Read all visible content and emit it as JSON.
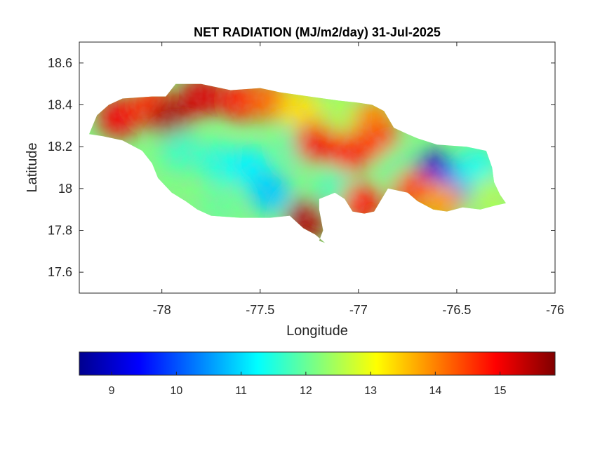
{
  "chart_data": {
    "type": "heatmap",
    "title": "NET RADIATION (MJ/m2/day) 31-Jul-2025",
    "xlabel": "Longitude",
    "ylabel": "Latitude",
    "xlim": [
      -78.42,
      -76.0
    ],
    "ylim": [
      17.5,
      18.7
    ],
    "x_ticks": [
      -78,
      -77.5,
      -77,
      -76.5,
      -76
    ],
    "x_tick_labels": [
      "-78",
      "-77.5",
      "-77",
      "-76.5",
      "-76"
    ],
    "y_ticks": [
      17.6,
      17.8,
      18,
      18.2,
      18.4,
      18.6
    ],
    "y_tick_labels": [
      "17.6",
      "17.8",
      "18",
      "18.2",
      "18.4",
      "18.6"
    ],
    "colormap": "jet",
    "color_range": [
      8.5,
      15.85
    ],
    "colorbar_ticks": [
      9,
      10,
      11,
      12,
      13,
      14,
      15
    ],
    "colorbar_tick_labels": [
      "9",
      "10",
      "11",
      "12",
      "13",
      "14",
      "15"
    ],
    "colorbar_location": "southoutside",
    "grid": false,
    "region_outline": [
      [
        -78.37,
        18.26
      ],
      [
        -78.33,
        18.35
      ],
      [
        -78.27,
        18.4
      ],
      [
        -78.2,
        18.43
      ],
      [
        -78.05,
        18.44
      ],
      [
        -77.98,
        18.44
      ],
      [
        -77.93,
        18.5
      ],
      [
        -77.8,
        18.5
      ],
      [
        -77.65,
        18.47
      ],
      [
        -77.5,
        18.48
      ],
      [
        -77.4,
        18.46
      ],
      [
        -77.25,
        18.44
      ],
      [
        -77.1,
        18.42
      ],
      [
        -77.0,
        18.41
      ],
      [
        -76.93,
        18.4
      ],
      [
        -76.87,
        18.37
      ],
      [
        -76.82,
        18.29
      ],
      [
        -76.75,
        18.26
      ],
      [
        -76.7,
        18.24
      ],
      [
        -76.6,
        18.21
      ],
      [
        -76.45,
        18.2
      ],
      [
        -76.35,
        18.18
      ],
      [
        -76.32,
        18.1
      ],
      [
        -76.31,
        18.03
      ],
      [
        -76.28,
        17.97
      ],
      [
        -76.25,
        17.93
      ],
      [
        -76.3,
        17.92
      ],
      [
        -76.38,
        17.9
      ],
      [
        -76.47,
        17.91
      ],
      [
        -76.55,
        17.89
      ],
      [
        -76.62,
        17.9
      ],
      [
        -76.7,
        17.94
      ],
      [
        -76.75,
        17.98
      ],
      [
        -76.85,
        18.0
      ],
      [
        -76.92,
        17.89
      ],
      [
        -76.97,
        17.88
      ],
      [
        -77.03,
        17.89
      ],
      [
        -77.07,
        17.95
      ],
      [
        -77.12,
        17.98
      ],
      [
        -77.2,
        17.95
      ],
      [
        -77.2,
        17.9
      ],
      [
        -77.18,
        17.8
      ],
      [
        -77.2,
        17.75
      ],
      [
        -77.17,
        17.74
      ],
      [
        -77.22,
        17.78
      ],
      [
        -77.28,
        17.81
      ],
      [
        -77.35,
        17.87
      ],
      [
        -77.45,
        17.86
      ],
      [
        -77.6,
        17.86
      ],
      [
        -77.75,
        17.87
      ],
      [
        -77.82,
        17.9
      ],
      [
        -77.88,
        17.94
      ],
      [
        -77.95,
        17.98
      ],
      [
        -78.02,
        18.05
      ],
      [
        -78.05,
        18.12
      ],
      [
        -78.1,
        18.18
      ],
      [
        -78.2,
        18.23
      ],
      [
        -78.3,
        18.25
      ]
    ],
    "value_field": [
      {
        "lon": -78.22,
        "lat": 18.34,
        "value": 15.0
      },
      {
        "lon": -78.05,
        "lat": 18.4,
        "value": 14.6
      },
      {
        "lon": -77.95,
        "lat": 18.33,
        "value": 15.6
      },
      {
        "lon": -77.8,
        "lat": 18.44,
        "value": 15.2
      },
      {
        "lon": -77.6,
        "lat": 18.42,
        "value": 14.8
      },
      {
        "lon": -77.45,
        "lat": 18.42,
        "value": 14.2
      },
      {
        "lon": -77.3,
        "lat": 18.38,
        "value": 13.3
      },
      {
        "lon": -77.1,
        "lat": 18.36,
        "value": 12.5
      },
      {
        "lon": -76.92,
        "lat": 18.33,
        "value": 13.9
      },
      {
        "lon": -77.9,
        "lat": 18.18,
        "value": 11.7
      },
      {
        "lon": -77.7,
        "lat": 18.12,
        "value": 11.5
      },
      {
        "lon": -77.55,
        "lat": 18.1,
        "value": 11.2
      },
      {
        "lon": -77.45,
        "lat": 17.98,
        "value": 10.9
      },
      {
        "lon": -77.7,
        "lat": 17.92,
        "value": 12.0
      },
      {
        "lon": -77.3,
        "lat": 18.2,
        "value": 11.8
      },
      {
        "lon": -77.22,
        "lat": 18.22,
        "value": 15.0
      },
      {
        "lon": -77.05,
        "lat": 18.17,
        "value": 14.8
      },
      {
        "lon": -76.9,
        "lat": 18.22,
        "value": 14.5
      },
      {
        "lon": -77.12,
        "lat": 18.0,
        "value": 11.8
      },
      {
        "lon": -77.26,
        "lat": 17.85,
        "value": 15.5
      },
      {
        "lon": -76.98,
        "lat": 17.93,
        "value": 14.8
      },
      {
        "lon": -76.8,
        "lat": 18.1,
        "value": 12.0
      },
      {
        "lon": -76.62,
        "lat": 18.08,
        "value": 9.0
      },
      {
        "lon": -76.5,
        "lat": 18.03,
        "value": 10.0
      },
      {
        "lon": -76.4,
        "lat": 18.1,
        "value": 11.4
      },
      {
        "lon": -76.33,
        "lat": 17.95,
        "value": 12.5
      },
      {
        "lon": -76.72,
        "lat": 17.99,
        "value": 14.5
      },
      {
        "lon": -76.58,
        "lat": 17.93,
        "value": 13.8
      }
    ]
  }
}
